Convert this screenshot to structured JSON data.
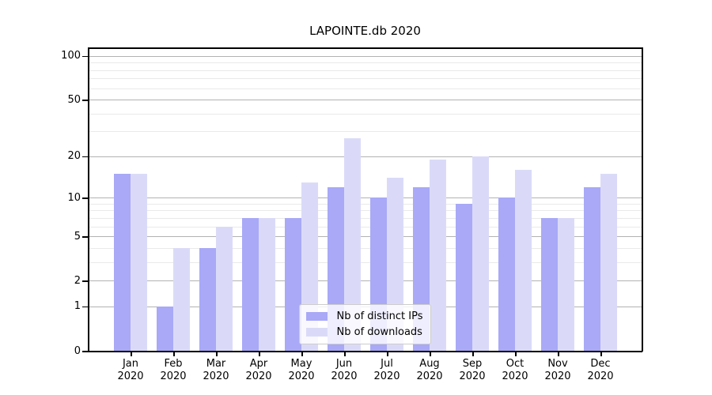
{
  "chart_data": {
    "type": "bar",
    "title": "LAPOINTE.db 2020",
    "categories": [
      "Jan",
      "Feb",
      "Mar",
      "Apr",
      "May",
      "Jun",
      "Jul",
      "Aug",
      "Sep",
      "Oct",
      "Nov",
      "Dec"
    ],
    "year_label": "2020",
    "series": [
      {
        "name": "Nb of distinct IPs",
        "color": "#a9a9f7",
        "values": [
          15,
          1,
          4,
          7,
          7,
          12,
          10,
          12,
          9,
          10,
          7,
          12
        ]
      },
      {
        "name": "Nb of downloads",
        "color": "#dadaf8",
        "values": [
          15,
          4,
          6,
          7,
          13,
          27,
          14,
          19,
          20,
          16,
          7,
          15
        ]
      }
    ],
    "yscale": "log1p",
    "y_ticks": [
      0,
      1,
      2,
      5,
      10,
      20,
      50,
      100
    ],
    "y_minor_ticks": [
      3,
      4,
      6,
      7,
      8,
      9,
      30,
      40,
      60,
      70,
      80,
      90
    ],
    "ylim": [
      0,
      113
    ],
    "grid": true,
    "legend_position": "lower center",
    "colors": {
      "grid_major": "#b2b2b2",
      "grid_minor": "#e9e9e9",
      "spine": "#000000",
      "text": "#000000",
      "background": "#ffffff"
    }
  }
}
